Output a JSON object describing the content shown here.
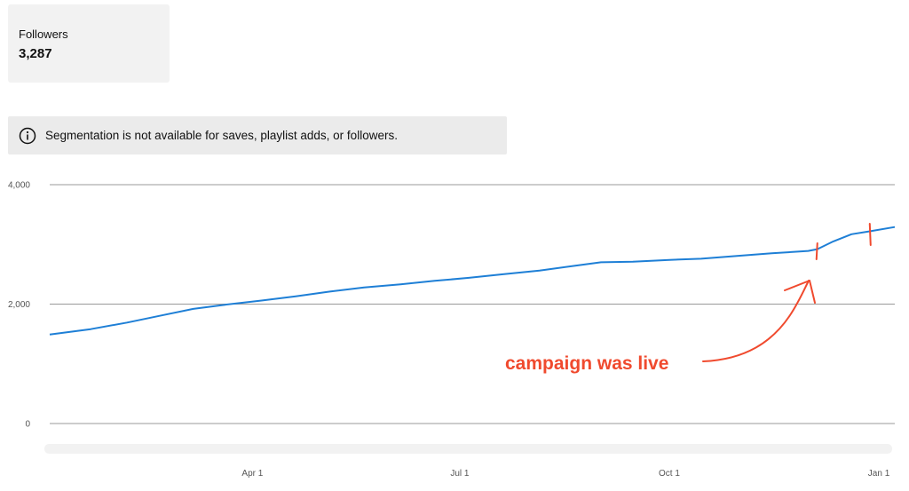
{
  "stat": {
    "label": "Followers",
    "value": "3,287"
  },
  "notice": {
    "icon": "info-icon",
    "text": "Segmentation is not available for saves, playlist adds, or followers."
  },
  "annotation": {
    "text": "campaign was live",
    "color": "#f04a2e",
    "campaign_start": "Dec 5",
    "campaign_end": "Dec 28"
  },
  "chart_data": {
    "type": "line",
    "title": "",
    "xlabel": "",
    "ylabel": "",
    "x_ticks": [
      {
        "date": "2019-04-01",
        "label": "Apr 1"
      },
      {
        "date": "2019-07-01",
        "label": "Jul 1"
      },
      {
        "date": "2019-10-01",
        "label": "Oct 1"
      },
      {
        "date": "2020-01-01",
        "label": "Jan 1"
      }
    ],
    "y_ticks": [
      {
        "value": 0,
        "label": "0"
      },
      {
        "value": 2000,
        "label": "2,000"
      },
      {
        "value": 4000,
        "label": "4,000"
      }
    ],
    "ylim": [
      0,
      4000
    ],
    "xlim": [
      "2019-01-02",
      "2020-01-08"
    ],
    "grid": true,
    "line_color": "#1e7fd6",
    "series": [
      {
        "x": [
          "2019-01-02",
          "2019-01-20",
          "2019-02-05",
          "2019-02-20",
          "2019-03-06",
          "2019-03-20",
          "2019-04-05",
          "2019-04-20",
          "2019-05-05",
          "2019-05-20",
          "2019-06-05",
          "2019-06-20",
          "2019-07-05",
          "2019-07-20",
          "2019-08-05",
          "2019-08-20",
          "2019-09-01",
          "2019-09-15",
          "2019-10-01",
          "2019-10-15",
          "2019-11-01",
          "2019-11-15",
          "2019-12-01",
          "2019-12-05",
          "2019-12-12",
          "2019-12-20",
          "2019-12-28",
          "2020-01-08"
        ],
        "values": [
          1490,
          1580,
          1690,
          1810,
          1920,
          1990,
          2060,
          2130,
          2210,
          2280,
          2330,
          2390,
          2440,
          2500,
          2560,
          2640,
          2700,
          2710,
          2740,
          2760,
          2810,
          2850,
          2890,
          2920,
          3050,
          3170,
          3220,
          3290
        ]
      }
    ]
  }
}
